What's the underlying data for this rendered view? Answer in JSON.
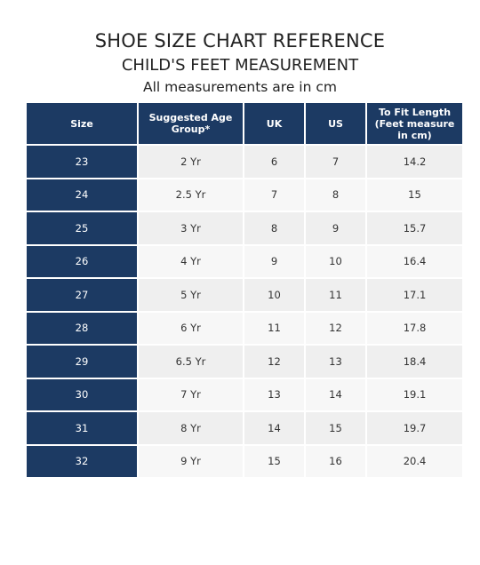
{
  "header": {
    "title": "SHOE SIZE CHART REFERENCE",
    "subtitle": "CHILD'S FEET MEASUREMENT",
    "note": "All measurements are in cm"
  },
  "table": {
    "columns": [
      "Size",
      "Suggested Age Group*",
      "UK",
      "US",
      "To Fit Length (Feet measure in cm)"
    ],
    "rows": [
      [
        "23",
        "2 Yr",
        "6",
        "7",
        "14.2"
      ],
      [
        "24",
        "2.5 Yr",
        "7",
        "8",
        "15"
      ],
      [
        "25",
        "3 Yr",
        "8",
        "9",
        "15.7"
      ],
      [
        "26",
        "4 Yr",
        "9",
        "10",
        "16.4"
      ],
      [
        "27",
        "5 Yr",
        "10",
        "11",
        "17.1"
      ],
      [
        "28",
        "6 Yr",
        "11",
        "12",
        "17.8"
      ],
      [
        "29",
        "6.5 Yr",
        "12",
        "13",
        "18.4"
      ],
      [
        "30",
        "7 Yr",
        "13",
        "14",
        "19.1"
      ],
      [
        "31",
        "8 Yr",
        "14",
        "15",
        "19.7"
      ],
      [
        "32",
        "9 Yr",
        "15",
        "16",
        "20.4"
      ]
    ]
  }
}
